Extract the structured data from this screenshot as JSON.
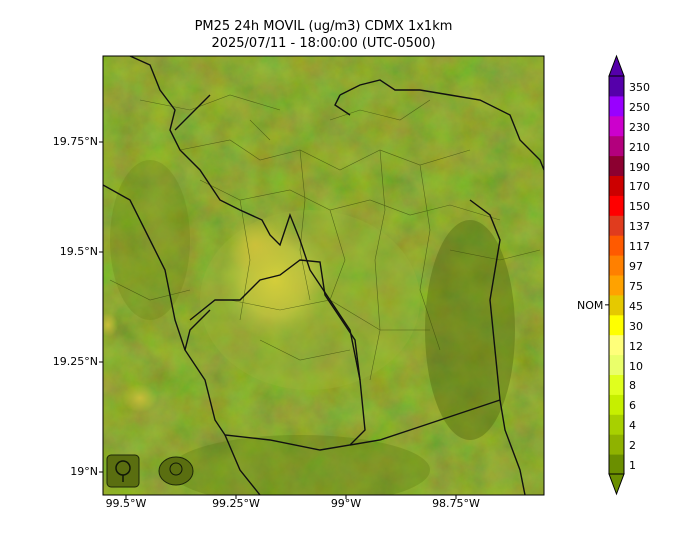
{
  "title": {
    "line1": "PM25 24h MOVIL (ug/m3) CDMX 1x1km",
    "line2": "2025/07/11 - 18:00:00 (UTC-0500)"
  },
  "map": {
    "lat_ticks": [
      "19.75°N",
      "19.5°N",
      "19.25°N",
      "19°N"
    ],
    "lon_ticks": [
      "99.5°W",
      "99.25°W",
      "99°W",
      "98.75°W"
    ],
    "logos": [
      "sedema-logo",
      "cdmx-logo"
    ],
    "base_color": "#7f9b18",
    "hotspot_color": "#d8cf3a"
  },
  "colorbar": {
    "levels": [
      "1",
      "2",
      "4",
      "6",
      "8",
      "10",
      "12",
      "30",
      "45",
      "75",
      "97",
      "117",
      "137",
      "150",
      "170",
      "190",
      "210",
      "230",
      "250",
      "350"
    ],
    "colors": [
      "#6b8f00",
      "#8fb200",
      "#a8d000",
      "#c6ef00",
      "#e0ff1e",
      "#eaff6a",
      "#ffff7a",
      "#ffff00",
      "#e5c900",
      "#ffa200",
      "#ff8000",
      "#ff5a00",
      "#e03c1e",
      "#ff0000",
      "#cc0000",
      "#8c0030",
      "#b3007d",
      "#cc00cc",
      "#9900ff",
      "#5500aa"
    ],
    "nom_label": "NOM",
    "nom_level": "45"
  }
}
